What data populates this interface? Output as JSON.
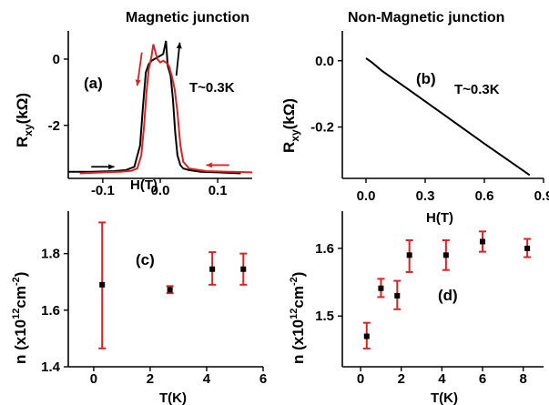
{
  "chart_data": [
    {
      "panel": "a",
      "type": "line",
      "title": "Magnetic junction",
      "label": "(a)",
      "annotation": "T~0.3K",
      "xlabel": "H(T)",
      "ylabel": "R_xy (kΩ)",
      "xlim": [
        -0.16,
        0.16
      ],
      "ylim": [
        -3.6,
        0.85
      ],
      "xticks": [
        -0.1,
        0.0,
        0.1
      ],
      "xticklabels": [
        "-0.1",
        "0.0",
        "0.1"
      ],
      "yticks": [
        0,
        -2
      ],
      "yticklabels": [
        "0",
        "-2"
      ],
      "series": [
        {
          "color": "#000000",
          "x": [
            -0.16,
            -0.12,
            -0.08,
            -0.06,
            -0.045,
            -0.035,
            -0.03,
            -0.025,
            -0.02,
            -0.015,
            -0.01,
            -0.005,
            0.0,
            0.005,
            0.01,
            0.013,
            0.018,
            0.022,
            0.026,
            0.03,
            0.035,
            0.04,
            0.05,
            0.07,
            0.1,
            0.14
          ],
          "y": [
            -3.4,
            -3.4,
            -3.38,
            -3.35,
            -3.25,
            -2.6,
            -1.4,
            -0.4,
            -0.15,
            -0.05,
            0.0,
            0.05,
            0.1,
            0.15,
            0.55,
            -0.2,
            -0.5,
            -1.2,
            -2.2,
            -2.9,
            -3.2,
            -3.3,
            -3.35,
            -3.4,
            -3.42,
            -3.45
          ]
        },
        {
          "color": "#dd2222",
          "x": [
            -0.14,
            -0.1,
            -0.07,
            -0.05,
            -0.04,
            -0.033,
            -0.028,
            -0.024,
            -0.02,
            -0.015,
            -0.012,
            -0.005,
            0.0,
            0.005,
            0.01,
            0.015,
            0.02,
            0.025,
            0.03,
            0.035,
            0.04,
            0.05,
            0.08,
            0.12,
            0.16
          ],
          "y": [
            -3.45,
            -3.42,
            -3.4,
            -3.37,
            -3.3,
            -2.9,
            -2.0,
            -1.0,
            -0.3,
            0.1,
            0.45,
            0.0,
            -0.1,
            -0.05,
            -0.1,
            -0.2,
            -0.5,
            -0.9,
            -1.6,
            -2.6,
            -3.1,
            -3.3,
            -3.38,
            -3.4,
            -3.42
          ]
        }
      ],
      "arrows": [
        {
          "color": "#dd2222",
          "direction": "down"
        },
        {
          "color": "#000000",
          "direction": "up"
        },
        {
          "color": "#000000",
          "direction": "right"
        },
        {
          "color": "#dd2222",
          "direction": "left"
        }
      ]
    },
    {
      "panel": "b",
      "type": "line",
      "title": "Non-Magnetic junction",
      "label": "(b)",
      "annotation": "T~0.3K",
      "xlabel": "H(T)",
      "ylabel": "R_xy (kΩ)",
      "xlim": [
        -0.12,
        0.9
      ],
      "ylim": [
        -0.355,
        0.09
      ],
      "xticks": [
        0.0,
        0.3,
        0.6,
        0.9
      ],
      "xticklabels": [
        "0.0",
        "0.3",
        "0.6",
        "0.9"
      ],
      "yticks": [
        0.0,
        -0.2
      ],
      "yticklabels": [
        "0.0",
        "-0.2"
      ],
      "series": [
        {
          "color": "#000000",
          "x": [
            0.0,
            0.03,
            0.05,
            0.08,
            0.2,
            0.4,
            0.6,
            0.83
          ],
          "y": [
            0.008,
            -0.005,
            -0.015,
            -0.03,
            -0.08,
            -0.165,
            -0.25,
            -0.345
          ]
        }
      ]
    },
    {
      "panel": "c",
      "type": "scatter",
      "label": "(c)",
      "xlabel": "T(K)",
      "ylabel": "n (x10^12 cm^-2)",
      "xlim": [
        -0.9,
        6.0
      ],
      "ylim": [
        1.4,
        1.95
      ],
      "xticks": [
        0,
        2,
        4,
        6
      ],
      "xticklabels": [
        "0",
        "2",
        "4",
        "6"
      ],
      "yticks": [
        1.4,
        1.6,
        1.8
      ],
      "yticklabels": [
        "1.4",
        "1.6",
        "1.8"
      ],
      "errorbar_color": "#dd2222",
      "points": [
        {
          "x": 0.3,
          "y": 1.69,
          "err_low": 1.465,
          "err_high": 1.91
        },
        {
          "x": 2.7,
          "y": 1.672,
          "err_low": 1.66,
          "err_high": 1.685
        },
        {
          "x": 4.2,
          "y": 1.745,
          "err_low": 1.69,
          "err_high": 1.805
        },
        {
          "x": 5.3,
          "y": 1.745,
          "err_low": 1.69,
          "err_high": 1.8
        }
      ]
    },
    {
      "panel": "d",
      "type": "scatter",
      "label": "(d)",
      "xlabel": "T(K)",
      "ylabel": "n (x10^12 cm^-2)",
      "xlim": [
        -0.9,
        9.0
      ],
      "ylim": [
        1.425,
        1.655
      ],
      "xticks": [
        0,
        2,
        4,
        6,
        8
      ],
      "xticklabels": [
        "0",
        "2",
        "4",
        "6",
        "8"
      ],
      "yticks": [
        1.5,
        1.6
      ],
      "yticklabels": [
        "1.5",
        "1.6"
      ],
      "errorbar_color": "#dd2222",
      "points": [
        {
          "x": 0.3,
          "y": 1.47,
          "err_low": 1.452,
          "err_high": 1.49
        },
        {
          "x": 1.0,
          "y": 1.541,
          "err_low": 1.528,
          "err_high": 1.555
        },
        {
          "x": 1.8,
          "y": 1.53,
          "err_low": 1.51,
          "err_high": 1.552
        },
        {
          "x": 2.4,
          "y": 1.59,
          "err_low": 1.565,
          "err_high": 1.612
        },
        {
          "x": 4.2,
          "y": 1.59,
          "err_low": 1.568,
          "err_high": 1.612
        },
        {
          "x": 6.0,
          "y": 1.61,
          "err_low": 1.595,
          "err_high": 1.625
        },
        {
          "x": 8.2,
          "y": 1.6,
          "err_low": 1.587,
          "err_high": 1.614
        }
      ]
    }
  ]
}
